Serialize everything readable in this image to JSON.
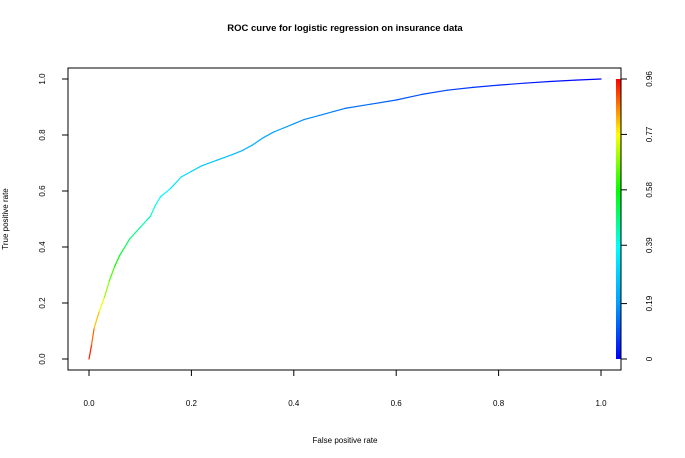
{
  "chart_data": {
    "type": "line",
    "title": "ROC curve for logistic regression on insurance data",
    "xlabel": "False positive rate",
    "ylabel": "True positive rate",
    "xlim": [
      0,
      1
    ],
    "ylim": [
      0,
      1
    ],
    "x_ticks": [
      "0.0",
      "0.2",
      "0.4",
      "0.6",
      "0.8",
      "1.0"
    ],
    "y_ticks": [
      "0.0",
      "0.2",
      "0.4",
      "0.6",
      "0.8",
      "1.0"
    ],
    "grid": false,
    "series": [
      {
        "x": [
          0.0,
          0.005,
          0.01,
          0.02,
          0.03,
          0.04,
          0.05,
          0.06,
          0.07,
          0.08,
          0.1,
          0.12,
          0.13,
          0.14,
          0.16,
          0.18,
          0.2,
          0.22,
          0.25,
          0.28,
          0.3,
          0.32,
          0.34,
          0.36,
          0.38,
          0.4,
          0.42,
          0.45,
          0.48,
          0.5,
          0.55,
          0.6,
          0.65,
          0.7,
          0.75,
          0.8,
          0.85,
          0.9,
          0.95,
          1.0
        ],
        "y": [
          0.0,
          0.05,
          0.11,
          0.17,
          0.22,
          0.28,
          0.33,
          0.37,
          0.4,
          0.43,
          0.47,
          0.51,
          0.55,
          0.58,
          0.61,
          0.65,
          0.67,
          0.69,
          0.71,
          0.73,
          0.745,
          0.765,
          0.79,
          0.81,
          0.825,
          0.84,
          0.855,
          0.87,
          0.885,
          0.895,
          0.91,
          0.925,
          0.945,
          0.96,
          0.97,
          0.978,
          0.985,
          0.991,
          0.996,
          1.0
        ],
        "threshold": [
          0.96,
          0.92,
          0.85,
          0.78,
          0.72,
          0.66,
          0.6,
          0.56,
          0.52,
          0.5,
          0.46,
          0.43,
          0.4,
          0.38,
          0.35,
          0.32,
          0.3,
          0.28,
          0.26,
          0.245,
          0.23,
          0.22,
          0.21,
          0.2,
          0.19,
          0.18,
          0.17,
          0.16,
          0.15,
          0.14,
          0.125,
          0.11,
          0.095,
          0.08,
          0.065,
          0.05,
          0.035,
          0.02,
          0.01,
          0.0
        ]
      }
    ],
    "colorbar": {
      "tick_labels": [
        "0",
        "0.19",
        "0.39",
        "0.58",
        "0.77",
        "0.96"
      ],
      "range": [
        0,
        0.96
      ],
      "colors": [
        "#0000ff",
        "#00a0ff",
        "#00ffff",
        "#00ff00",
        "#ffff00",
        "#ff0000"
      ]
    }
  }
}
